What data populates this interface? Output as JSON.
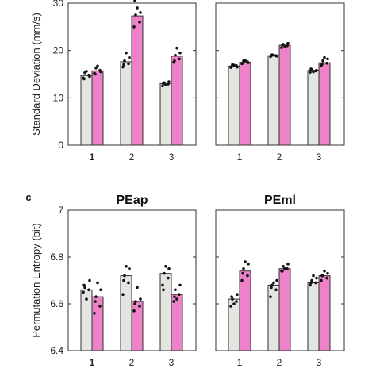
{
  "colors": {
    "series_a": "#e3e5e1",
    "series_b": "#ee82c8",
    "points": "#111111",
    "frame": "#333333"
  },
  "chart_data": [
    {
      "type": "bar",
      "panel_letter": "",
      "title": "",
      "ylabel": "Standard Deviation (mm/s)",
      "ylim": [
        0,
        30
      ],
      "yticks": [
        0,
        10,
        20,
        30
      ],
      "categories": [
        "1",
        "2",
        "3"
      ],
      "bold_categories": [
        true,
        false,
        false
      ],
      "grid": false,
      "series": [
        {
          "values": [
            14.7,
            17.6,
            13.0
          ],
          "points": [
            [
              14.2,
              14.8,
              15.3,
              14.5,
              15.6,
              14.0
            ],
            [
              16.5,
              17.2,
              17.8,
              18.5,
              19.5,
              17.0
            ],
            [
              12.5,
              12.9,
              13.2,
              13.4,
              12.7,
              13.0
            ]
          ]
        },
        {
          "values": [
            15.7,
            27.3,
            18.8
          ],
          "points": [
            [
              15.2,
              15.8,
              16.3,
              15.5,
              16.7,
              15.0
            ],
            [
              25.0,
              26.0,
              27.5,
              28.0,
              29.0,
              30.5
            ],
            [
              17.5,
              18.2,
              19.0,
              19.5,
              20.5,
              17.8
            ]
          ]
        }
      ]
    },
    {
      "type": "bar",
      "panel_letter": "",
      "title": "",
      "ylabel": "",
      "ylim": [
        0,
        30
      ],
      "yticks": [
        0,
        10,
        20,
        30
      ],
      "categories": [
        "1",
        "2",
        "3"
      ],
      "bold_categories": [
        false,
        false,
        false
      ],
      "grid": false,
      "series": [
        {
          "values": [
            16.7,
            18.9,
            15.8
          ],
          "points": [
            [
              16.4,
              16.8,
              17.0,
              16.5,
              16.9,
              16.6
            ],
            [
              18.7,
              18.9,
              19.1,
              18.8,
              19.0,
              18.9
            ],
            [
              15.4,
              15.7,
              16.0,
              15.8,
              15.5,
              16.1
            ]
          ]
        },
        {
          "values": [
            17.5,
            21.1,
            17.4
          ],
          "points": [
            [
              17.2,
              17.6,
              17.8,
              17.4,
              17.9,
              17.3
            ],
            [
              20.6,
              21.0,
              21.3,
              21.5,
              20.9,
              21.2
            ],
            [
              16.8,
              17.3,
              17.8,
              18.2,
              18.5,
              17.1
            ]
          ]
        }
      ]
    },
    {
      "type": "bar",
      "panel_letter": "c",
      "title": "PEap",
      "ylabel": "Permutation Entropy (bit)",
      "ylim": [
        6.4,
        7.0
      ],
      "yticks": [
        6.4,
        6.6,
        6.8,
        7
      ],
      "ytick_labels": [
        "6.4",
        "6.6",
        "6.8",
        "7"
      ],
      "categories": [
        "1",
        "2",
        "3"
      ],
      "bold_categories": [
        true,
        false,
        false
      ],
      "grid": false,
      "series": [
        {
          "values": [
            6.66,
            6.72,
            6.73
          ],
          "points": [
            [
              6.65,
              6.66,
              6.67,
              6.7,
              6.62,
              6.68
            ],
            [
              6.64,
              6.69,
              6.72,
              6.75,
              6.76,
              6.7
            ],
            [
              6.68,
              6.71,
              6.73,
              6.75,
              6.76,
              6.66
            ]
          ]
        },
        {
          "values": [
            6.63,
            6.61,
            6.64
          ],
          "points": [
            [
              6.56,
              6.59,
              6.63,
              6.66,
              6.69,
              6.61
            ],
            [
              6.57,
              6.59,
              6.61,
              6.62,
              6.67,
              6.6
            ],
            [
              6.61,
              6.64,
              6.66,
              6.68,
              6.62,
              6.63
            ]
          ]
        }
      ]
    },
    {
      "type": "bar",
      "panel_letter": "",
      "title": "PEml",
      "ylabel": "",
      "ylim": [
        6.4,
        7.0
      ],
      "yticks": [
        6.4,
        6.6,
        6.8,
        7
      ],
      "ytick_labels": [
        "6.4",
        "6.6",
        "6.8",
        "7"
      ],
      "categories": [
        "1",
        "2",
        "3"
      ],
      "bold_categories": [
        false,
        false,
        false
      ],
      "grid": false,
      "series": [
        {
          "values": [
            6.62,
            6.68,
            6.69
          ],
          "points": [
            [
              6.59,
              6.61,
              6.62,
              6.64,
              6.6,
              6.63
            ],
            [
              6.63,
              6.66,
              6.68,
              6.7,
              6.69,
              6.67
            ],
            [
              6.68,
              6.69,
              6.7,
              6.71,
              6.72,
              6.69
            ]
          ]
        },
        {
          "values": [
            6.74,
            6.75,
            6.72
          ],
          "points": [
            [
              6.7,
              6.72,
              6.75,
              6.77,
              6.78,
              6.73
            ],
            [
              6.74,
              6.75,
              6.76,
              6.77,
              6.75,
              6.74
            ],
            [
              6.7,
              6.71,
              6.72,
              6.73,
              6.74,
              6.72
            ]
          ]
        }
      ]
    }
  ]
}
